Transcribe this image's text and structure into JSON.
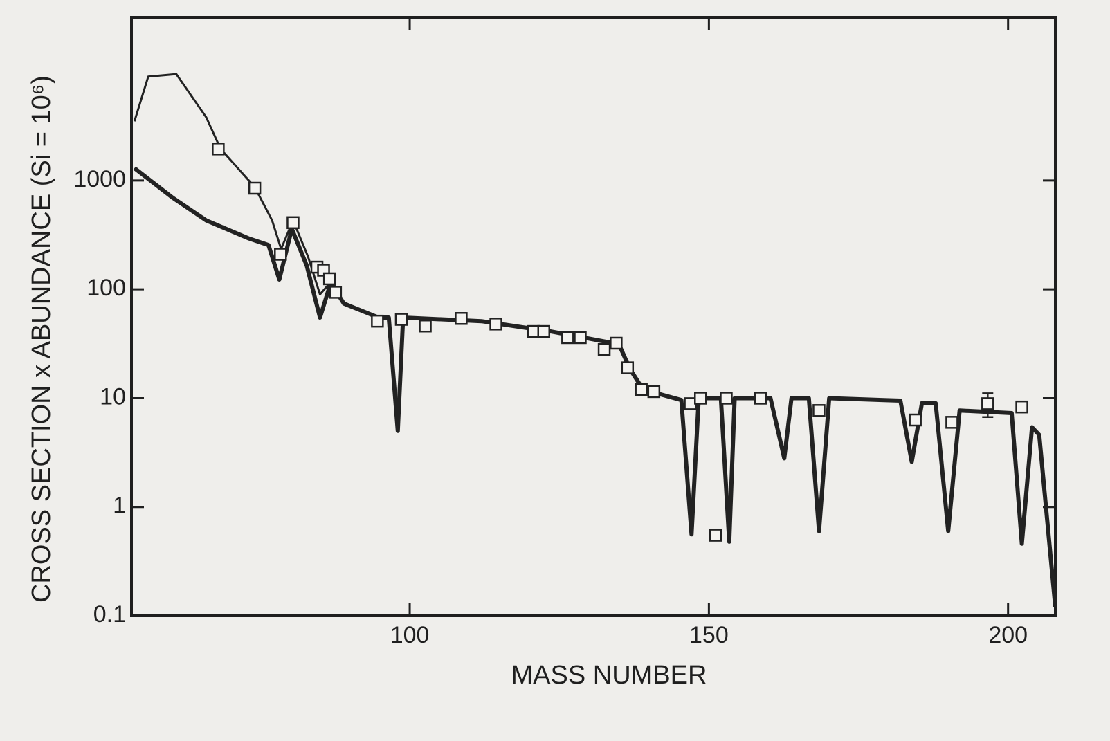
{
  "chart_data": {
    "type": "line",
    "xlabel": "MASS NUMBER",
    "ylabel": "CROSS SECTION x ABUNDANCE (Si = 10⁶)",
    "xlim": [
      53.5,
      207.9
    ],
    "xticks": [
      100,
      150,
      200
    ],
    "ylim": [
      0.1,
      31623
    ],
    "yticks": [
      0.1,
      1,
      10,
      100,
      1000
    ],
    "log_y": true,
    "grid": false,
    "series": [
      {
        "type": "line",
        "color": "#222222",
        "width": 3,
        "x": [
          54,
          56.3,
          61,
          66,
          68.4,
          74.1,
          77,
          78.5,
          80.5,
          83,
          85,
          87,
          89
        ],
        "values": [
          3500,
          9000,
          9500,
          3800,
          1950,
          870,
          430,
          235,
          430,
          200,
          90,
          120,
          75
        ]
      },
      {
        "type": "line",
        "color": "#222222",
        "width": 6,
        "x": [
          54,
          60.3,
          66,
          73,
          76.4,
          78.2,
          80.3,
          82.8,
          85,
          86.8,
          89,
          94.8,
          96.5,
          98,
          98.9,
          112,
          123.6,
          132.8,
          135,
          136.8,
          139,
          145.4,
          147.1,
          148.3,
          152,
          153.4,
          154.3,
          160.3,
          162.6,
          163.8,
          166.7,
          168.4,
          170.1,
          182,
          183.9,
          185.6,
          187.9,
          190,
          191.9,
          200.6,
          202.3,
          204,
          205.2,
          207.9
        ],
        "values": [
          1300,
          700,
          430,
          295,
          255,
          123,
          360,
          165,
          55,
          115,
          74,
          55,
          55,
          5,
          55,
          51,
          41,
          33,
          31,
          18.6,
          12,
          9.6,
          0.56,
          10,
          10,
          0.48,
          10,
          10,
          2.8,
          10,
          10,
          0.6,
          10,
          9.5,
          2.6,
          9,
          9,
          0.6,
          7.7,
          7.3,
          0.46,
          5.4,
          4.6,
          0.12
        ]
      },
      {
        "type": "scatter",
        "color": "#222222",
        "x": [
          68.0,
          74.1,
          78.4,
          80.5,
          84.5,
          85.6,
          86.6,
          87.6,
          94.6,
          98.6,
          102.6,
          108.6,
          114.4,
          120.7,
          122.4,
          126.4,
          128.5,
          132.5,
          134.5,
          136.4,
          138.7,
          140.8,
          146.9,
          148.6,
          151.1,
          152.9,
          158.6,
          168.4,
          184.5,
          190.6,
          202.3
        ],
        "values": [
          1950,
          850,
          210,
          410,
          160,
          150,
          125,
          94,
          51,
          53,
          46,
          54,
          48,
          41,
          41,
          36,
          36,
          28,
          32,
          19,
          12,
          11.5,
          8.9,
          10,
          0.55,
          10,
          10,
          7.7,
          6.3,
          6.0,
          8.3
        ]
      },
      {
        "type": "scatter",
        "color": "#222222",
        "x": [
          196.6
        ],
        "values": [
          8.9
        ],
        "errors": [
          2.2
        ]
      }
    ]
  }
}
